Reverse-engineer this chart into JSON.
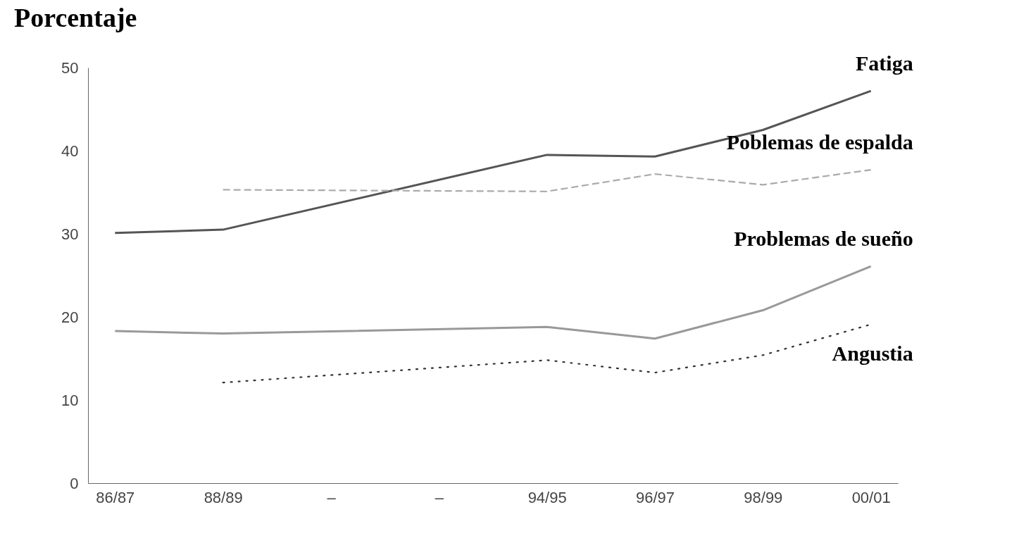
{
  "chart_data": {
    "type": "line",
    "title": "Porcentaje",
    "categories": [
      "86/87",
      "88/89",
      "–",
      "–",
      "94/95",
      "96/97",
      "98/99",
      "00/01"
    ],
    "ylim": [
      0,
      50
    ],
    "yticks": [
      0,
      10,
      20,
      30,
      40,
      50
    ],
    "marker": "none",
    "series": [
      {
        "name": "Fatiga",
        "color": "#555555",
        "line_style": "solid",
        "values": [
          30.1,
          30.5,
          null,
          null,
          39.5,
          39.3,
          42.5,
          47.2
        ]
      },
      {
        "name": "Poblemas de espalda",
        "color": "#aaaaaa",
        "line_style": "dashed",
        "values": [
          null,
          35.3,
          null,
          null,
          35.1,
          37.2,
          35.9,
          37.7
        ]
      },
      {
        "name": "Problemas de sueño",
        "color": "#999999",
        "line_style": "solid",
        "values": [
          18.3,
          18.0,
          null,
          null,
          18.8,
          17.4,
          20.8,
          26.1
        ]
      },
      {
        "name": "Angustia",
        "color": "#333333",
        "line_style": "dotted",
        "values": [
          null,
          12.1,
          null,
          null,
          14.8,
          13.3,
          15.4,
          19.1
        ]
      }
    ]
  }
}
